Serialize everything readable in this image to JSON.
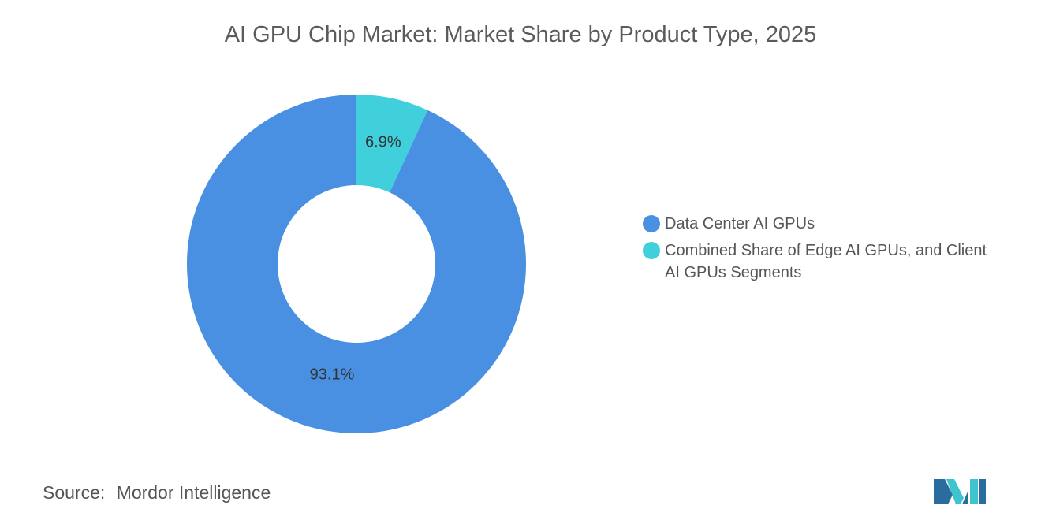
{
  "title": "AI GPU Chip Market: Market Share by Product Type, 2025",
  "source": {
    "label": "Source:",
    "value": "Mordor Intelligence"
  },
  "colors": {
    "data_center": "#4a90e2",
    "combined": "#3fd0db",
    "logo_dark": "#2b6c9e",
    "logo_light": "#3fc3cf"
  },
  "chart_data": {
    "type": "pie",
    "donut": true,
    "title": "AI GPU Chip Market: Market Share by Product Type, 2025",
    "legend_position": "right",
    "slices": [
      {
        "name": "Combined Share of Edge AI GPUs, and Client AI GPUs Segments",
        "value": 6.9,
        "label": "6.9%",
        "color": "#3fd0db"
      },
      {
        "name": "Data Center AI GPUs",
        "value": 93.1,
        "label": "93.1%",
        "color": "#4a90e2"
      }
    ]
  },
  "legend": [
    {
      "label": "Data Center AI GPUs",
      "color": "#4a90e2"
    },
    {
      "label": "Combined Share of Edge AI GPUs, and Client AI GPUs Segments",
      "color": "#3fd0db"
    }
  ]
}
